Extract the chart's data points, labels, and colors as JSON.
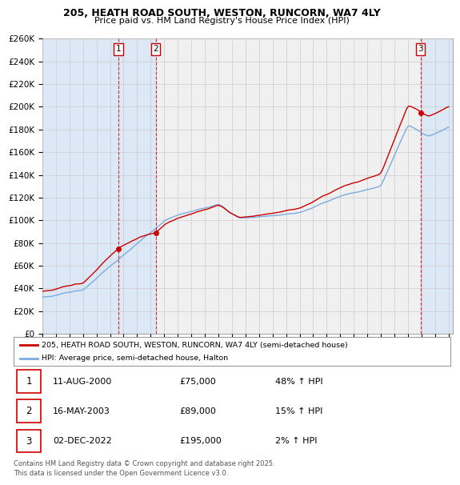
{
  "title": "205, HEATH ROAD SOUTH, WESTON, RUNCORN, WA7 4LY",
  "subtitle": "Price paid vs. HM Land Registry's House Price Index (HPI)",
  "ylim": [
    0,
    260000
  ],
  "yticks": [
    0,
    20000,
    40000,
    60000,
    80000,
    100000,
    120000,
    140000,
    160000,
    180000,
    200000,
    220000,
    240000,
    260000
  ],
  "hpi_color": "#7aace0",
  "price_color": "#cc0000",
  "shade_color": "#dce8f5",
  "background_color": "#ffffff",
  "plot_bg_color": "#f0f0f0",
  "grid_color": "#cccccc",
  "legend_line1": "205, HEATH ROAD SOUTH, WESTON, RUNCORN, WA7 4LY (semi-detached house)",
  "legend_line2": "HPI: Average price, semi-detached house, Halton",
  "transactions": [
    {
      "label": "1",
      "date": "11-AUG-2000",
      "price": 75000,
      "hpi_pct": "48%",
      "direction": "↑",
      "year": 2000.61
    },
    {
      "label": "2",
      "date": "16-MAY-2003",
      "price": 89000,
      "hpi_pct": "15%",
      "direction": "↑",
      "year": 2003.37
    },
    {
      "label": "3",
      "date": "02-DEC-2022",
      "price": 195000,
      "hpi_pct": "2%",
      "direction": "↑",
      "year": 2022.92
    }
  ],
  "footer_line1": "Contains HM Land Registry data © Crown copyright and database right 2025.",
  "footer_line2": "This data is licensed under the Open Government Licence v3.0.",
  "xmin": 1995.0,
  "xmax": 2025.3
}
